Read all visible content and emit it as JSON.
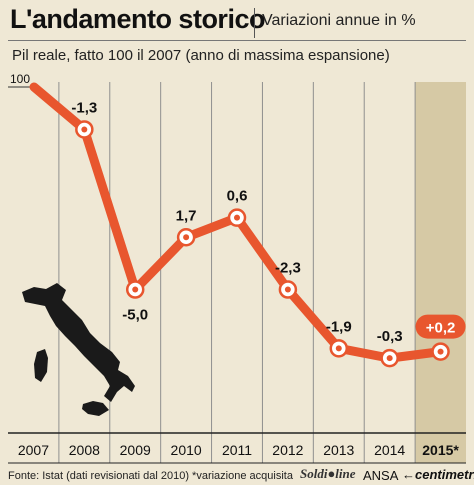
{
  "header": {
    "title": "L'andamento storico",
    "subtitle": "Variazioni annue in %",
    "description": "Pil reale, fatto 100 il 2007 (anno di massima espansione)"
  },
  "chart_data": {
    "type": "line",
    "x": [
      "2007",
      "2008",
      "2009",
      "2010",
      "2011",
      "2012",
      "2013",
      "2014",
      "2015*"
    ],
    "index_values": [
      100,
      98.7,
      93.8,
      95.4,
      96.0,
      93.8,
      92.0,
      91.7,
      91.9
    ],
    "change_labels": [
      "",
      "-1,3",
      "-5,0",
      "1,7",
      "0,6",
      "-2,3",
      "-1,9",
      "-0,3",
      "+0,2"
    ],
    "y_tick_label": "100",
    "highlighted_category": "2015*",
    "line_color": "#e8562e",
    "highlight_band_color": "#d6c9a5",
    "badge_color": "#e8562e"
  },
  "footer": {
    "source": "Fonte: Istat (dati revisionati dal 2010)",
    "note": "*variazione acquisita",
    "logo_soldi": "Soldi●line",
    "logo_ansa": "ANSA",
    "logo_centimetri": "←centimetri"
  }
}
